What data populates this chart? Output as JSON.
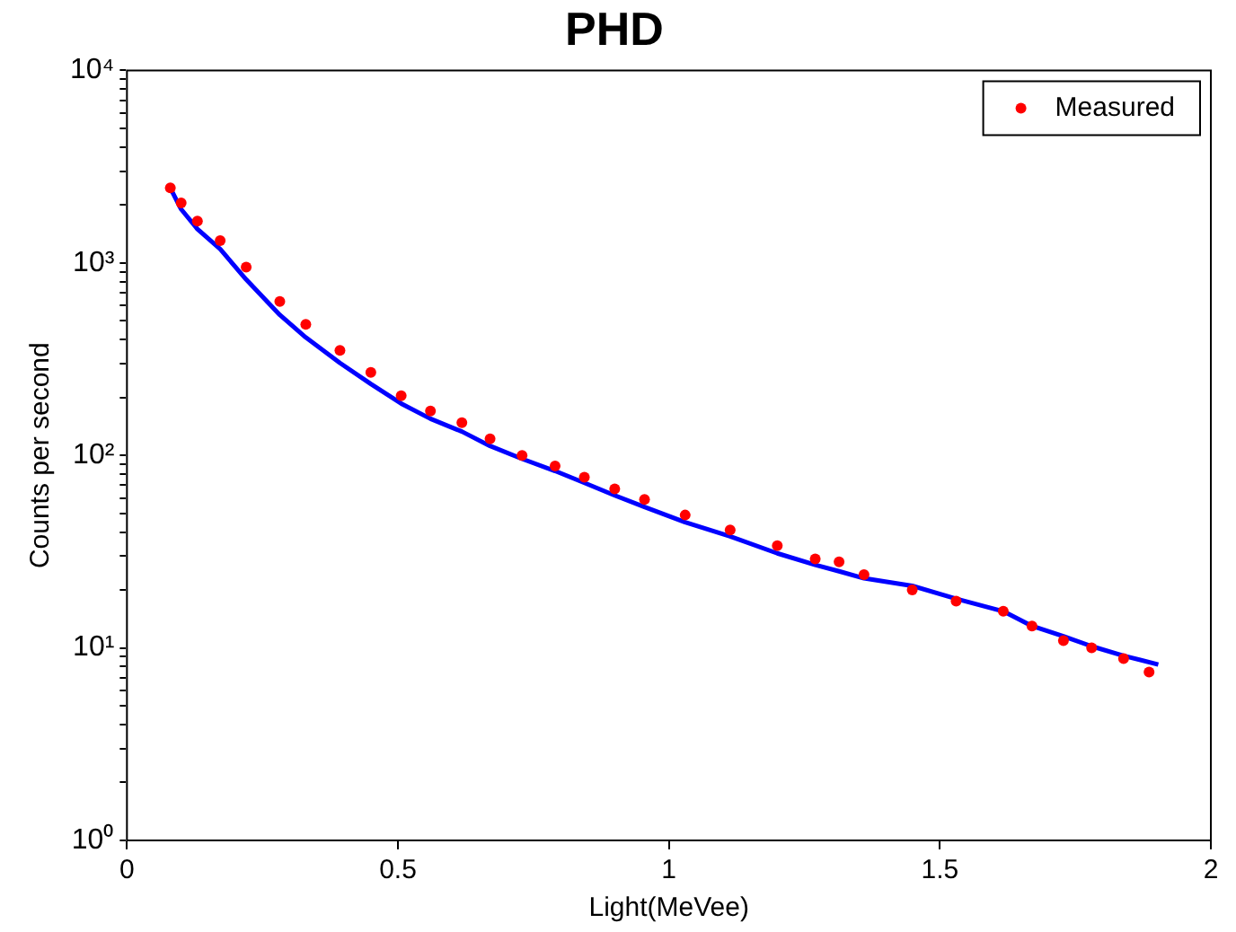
{
  "chart_data": {
    "type": "scatter",
    "title": "PHD",
    "xlabel": "Light(MeVee)",
    "ylabel": "Counts per second",
    "series": [
      {
        "name": "Measured",
        "color": "#ff0000",
        "marker": "circle",
        "x": [
          0.08,
          0.1,
          0.13,
          0.172,
          0.22,
          0.282,
          0.33,
          0.393,
          0.45,
          0.506,
          0.56,
          0.618,
          0.67,
          0.729,
          0.79,
          0.844,
          0.9,
          0.955,
          1.03,
          1.113,
          1.2,
          1.27,
          1.314,
          1.36,
          1.449,
          1.53,
          1.617,
          1.67,
          1.728,
          1.78,
          1.839,
          1.886
        ],
        "values": [
          2450,
          2050,
          1650,
          1306,
          950,
          631,
          480,
          351,
          270,
          204,
          170,
          148,
          122,
          100,
          88,
          77,
          67,
          59,
          49,
          41,
          34,
          29,
          28,
          24,
          20,
          17.5,
          15.5,
          13,
          10.9,
          10,
          8.8,
          7.5
        ]
      },
      {
        "type": "line",
        "color": "#0000ff",
        "line_style": "solid",
        "marker": "none",
        "x": [
          0.08,
          0.1,
          0.13,
          0.172,
          0.22,
          0.282,
          0.33,
          0.393,
          0.45,
          0.506,
          0.56,
          0.618,
          0.67,
          0.729,
          0.79,
          0.844,
          0.9,
          0.955,
          1.03,
          1.113,
          1.2,
          1.27,
          1.314,
          1.36,
          1.449,
          1.53,
          1.617,
          1.67,
          1.728,
          1.78,
          1.839,
          1.903
        ],
        "values": [
          2450,
          1900,
          1500,
          1180,
          820,
          537,
          410,
          302,
          235,
          186,
          155,
          133,
          112,
          96,
          83,
          72,
          62,
          54,
          45,
          38,
          31,
          27,
          25,
          23,
          21,
          18,
          15.5,
          13,
          11.5,
          10.2,
          9.1,
          8.2
        ]
      }
    ],
    "xlim": [
      0,
      2
    ],
    "xticks": [
      0,
      0.5,
      1,
      1.5,
      2
    ],
    "log": true,
    "ylim": [
      1,
      10000
    ],
    "yticks": [
      {
        "value": 1,
        "label": "10⁰"
      },
      {
        "value": 2,
        "label": null
      },
      {
        "value": 3,
        "label": null
      },
      {
        "value": 4,
        "label": null
      },
      {
        "value": 5,
        "label": null
      },
      {
        "value": 6,
        "label": null
      },
      {
        "value": 7,
        "label": null
      },
      {
        "value": 8,
        "label": null
      },
      {
        "value": 9,
        "label": null
      },
      {
        "value": 10,
        "label": "10¹"
      },
      {
        "value": 20,
        "label": null
      },
      {
        "value": 30,
        "label": null
      },
      {
        "value": 40,
        "label": null
      },
      {
        "value": 50,
        "label": null
      },
      {
        "value": 60,
        "label": null
      },
      {
        "value": 70,
        "label": null
      },
      {
        "value": 80,
        "label": null
      },
      {
        "value": 90,
        "label": null
      },
      {
        "value": 100,
        "label": "10²"
      },
      {
        "value": 200,
        "label": null
      },
      {
        "value": 300,
        "label": null
      },
      {
        "value": 400,
        "label": null
      },
      {
        "value": 500,
        "label": null
      },
      {
        "value": 600,
        "label": null
      },
      {
        "value": 700,
        "label": null
      },
      {
        "value": 800,
        "label": null
      },
      {
        "value": 900,
        "label": null
      },
      {
        "value": 1000,
        "label": "10³"
      },
      {
        "value": 2000,
        "label": null
      },
      {
        "value": 3000,
        "label": null
      },
      {
        "value": 4000,
        "label": null
      },
      {
        "value": 5000,
        "label": null
      },
      {
        "value": 6000,
        "label": null
      },
      {
        "value": 7000,
        "label": null
      },
      {
        "value": 8000,
        "label": null
      },
      {
        "value": 9000,
        "label": null
      },
      {
        "value": 10000,
        "label": "10⁴"
      }
    ],
    "grid": false,
    "legend": "top right"
  }
}
